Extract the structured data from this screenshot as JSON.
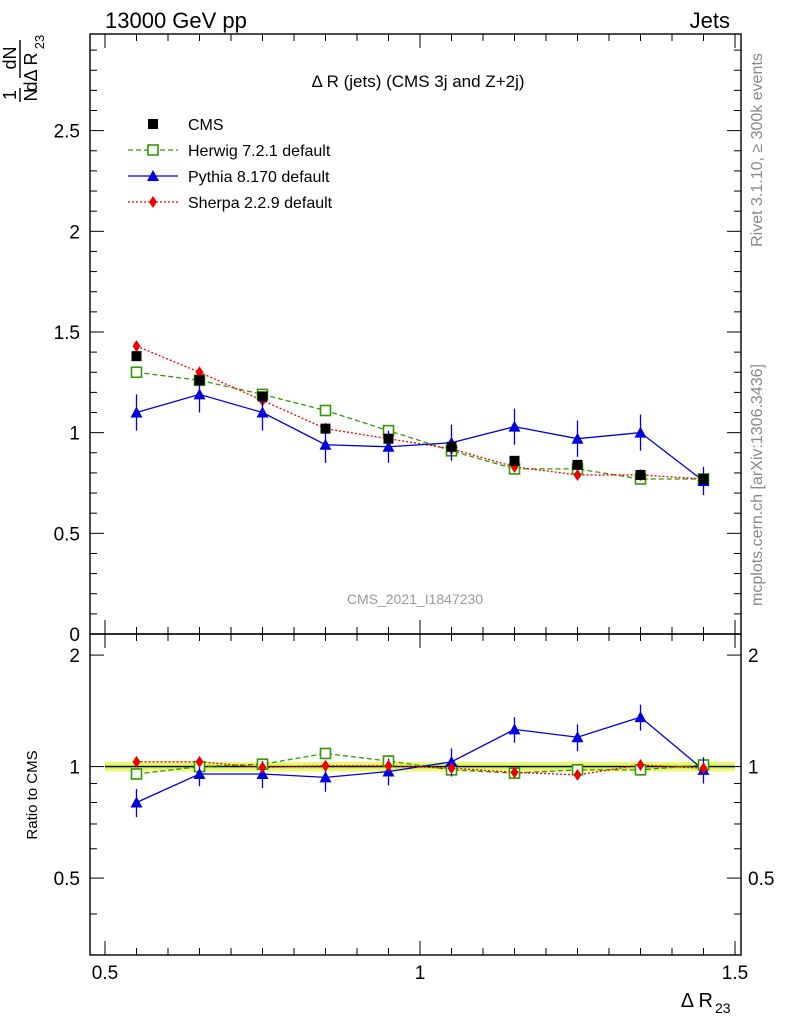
{
  "header": {
    "energy_label": "13000 GeV pp",
    "category_label": "Jets"
  },
  "side_labels": {
    "rivet": "Rivet 3.1.10, ≥ 300k events",
    "source": "mcplots.cern.ch [arXiv:1306.3436]"
  },
  "chart_data": {
    "type": "line",
    "title": "Δ R (jets) (CMS 3j and Z+2j)",
    "watermark": "CMS_2021_I1847230",
    "xlabel": "Δ R",
    "xlabel_sub": "23",
    "ylabel_frac_num": "1",
    "ylabel_frac_den": "N",
    "ylabel_deriv_num": "dN",
    "ylabel_deriv_den": "dΔ R",
    "ylabel_sub": "23",
    "xlim": [
      0.5,
      1.5
    ],
    "ylim": [
      0,
      2.98
    ],
    "x_ticks": [
      {
        "v": 0.5,
        "label": "0.5"
      },
      {
        "v": 1.0,
        "label": "1"
      },
      {
        "v": 1.5,
        "label": "1.5"
      }
    ],
    "y_ticks": [
      {
        "v": 0,
        "label": "0"
      },
      {
        "v": 0.5,
        "label": "0.5"
      },
      {
        "v": 1,
        "label": "1"
      },
      {
        "v": 1.5,
        "label": "1.5"
      },
      {
        "v": 2,
        "label": "2"
      },
      {
        "v": 2.5,
        "label": "2.5"
      }
    ],
    "x": [
      0.55,
      0.65,
      0.75,
      0.85,
      0.95,
      1.05,
      1.15,
      1.25,
      1.35,
      1.45
    ],
    "series": [
      {
        "name": "CMS",
        "color": "#000000",
        "marker": "square",
        "values": [
          1.38,
          1.26,
          1.18,
          1.02,
          0.97,
          0.93,
          0.86,
          0.84,
          0.79,
          0.77
        ]
      },
      {
        "name": "Herwig 7.2.1 default",
        "color": "#339900",
        "marker": "open-square",
        "dash": "dashed",
        "values": [
          1.3,
          1.26,
          1.19,
          1.11,
          1.01,
          0.91,
          0.82,
          0.82,
          0.77,
          0.77
        ]
      },
      {
        "name": "Pythia 8.170 default",
        "color": "#0000dd",
        "marker": "triangle",
        "dash": "solid",
        "values": [
          1.1,
          1.19,
          1.1,
          0.94,
          0.93,
          0.95,
          1.03,
          0.97,
          1.0,
          0.76
        ],
        "errors": [
          0.09,
          0.09,
          0.09,
          0.09,
          0.08,
          0.09,
          0.09,
          0.09,
          0.09,
          0.07
        ]
      },
      {
        "name": "Sherpa 2.2.9 default",
        "color": "#ee0000",
        "marker": "diamond",
        "dash": "dotted",
        "values": [
          1.43,
          1.3,
          1.16,
          1.02,
          0.97,
          0.92,
          0.83,
          0.79,
          0.79,
          0.77
        ]
      }
    ],
    "ratio": {
      "ylabel": "Ratio to CMS",
      "ylim": [
        0.31,
        2.28
      ],
      "y_ticks": [
        {
          "v": 0.5,
          "label": "0.5"
        },
        {
          "v": 1,
          "label": "1"
        },
        {
          "v": 2,
          "label": "2"
        }
      ],
      "band_half_width": 0.03,
      "series": [
        {
          "name": "Herwig 7.2.1 default",
          "values": [
            0.955,
            1.0,
            1.015,
            1.085,
            1.035,
            0.98,
            0.96,
            0.98,
            0.98,
            1.01
          ]
        },
        {
          "name": "Pythia 8.170 default",
          "values": [
            0.8,
            0.955,
            0.955,
            0.935,
            0.97,
            1.03,
            1.26,
            1.2,
            1.36,
            0.98
          ],
          "errors": [
            0.07,
            0.07,
            0.08,
            0.08,
            0.08,
            0.09,
            0.1,
            0.1,
            0.11,
            0.08
          ]
        },
        {
          "name": "Sherpa 2.2.9 default",
          "values": [
            1.03,
            1.03,
            0.995,
            1.005,
            1.005,
            0.99,
            0.965,
            0.95,
            1.01,
            0.99
          ]
        }
      ]
    },
    "legend_placement": "top-left"
  }
}
